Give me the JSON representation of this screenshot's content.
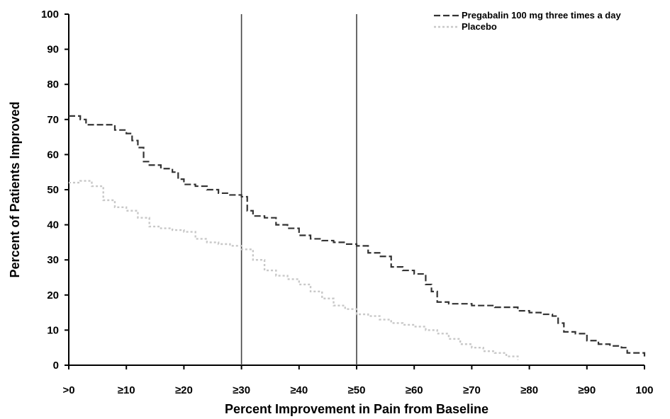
{
  "chart_data": {
    "type": "line",
    "title": "",
    "xlabel": "Percent Improvement in Pain from Baseline",
    "ylabel": "Percent of Patients Improved",
    "xlim": [
      0,
      100
    ],
    "ylim": [
      0,
      100
    ],
    "x_tick_labels": [
      ">0",
      "≥10",
      "≥20",
      "≥30",
      "≥40",
      "≥50",
      "≥60",
      "≥70",
      "≥80",
      "≥90",
      "100"
    ],
    "x_tick_values": [
      0,
      10,
      20,
      30,
      40,
      50,
      60,
      70,
      80,
      90,
      100
    ],
    "y_tick_values": [
      0,
      10,
      20,
      30,
      40,
      50,
      60,
      70,
      80,
      90,
      100
    ],
    "reference_lines_x": [
      30,
      50
    ],
    "grid": false,
    "legend_position": "top-right",
    "series": [
      {
        "name": "Pregabalin 100 mg three times a day",
        "style": "dashed",
        "color": "#333333",
        "x": [
          0,
          2,
          3,
          8,
          10,
          11,
          12,
          13,
          14,
          16,
          18,
          19,
          20,
          22,
          24,
          26,
          28,
          30,
          31,
          32,
          34,
          35,
          36,
          38,
          40,
          42,
          44,
          46,
          48,
          50,
          52,
          54,
          56,
          58,
          60,
          62,
          63,
          64,
          66,
          70,
          74,
          78,
          80,
          82,
          84,
          85,
          86,
          88,
          90,
          92,
          94,
          96,
          97,
          100
        ],
        "y": [
          71,
          70,
          68.5,
          67,
          66,
          64,
          62,
          58,
          57,
          56,
          55,
          53,
          51.5,
          51,
          50,
          49,
          48.5,
          48,
          44,
          42.5,
          42,
          42,
          40,
          39,
          37,
          36,
          35.5,
          35,
          34.5,
          34,
          32,
          31,
          28,
          27,
          26,
          23,
          21,
          18,
          17.5,
          17,
          16.5,
          15.5,
          15,
          14.5,
          14,
          12,
          9.5,
          9,
          7,
          6,
          5.5,
          5,
          3.5,
          2.5
        ]
      },
      {
        "name": "Placebo",
        "style": "dotted",
        "color": "#c8c8c8",
        "x": [
          0,
          2,
          4,
          6,
          8,
          10,
          12,
          14,
          16,
          18,
          20,
          22,
          24,
          26,
          28,
          30,
          32,
          34,
          36,
          38,
          40,
          42,
          44,
          46,
          48,
          50,
          52,
          54,
          56,
          58,
          60,
          62,
          64,
          66,
          68,
          70,
          72,
          74,
          76,
          78
        ],
        "y": [
          52,
          52.5,
          51,
          47,
          45,
          44,
          42,
          39.5,
          39,
          38.5,
          38,
          36,
          35,
          34.5,
          34,
          33,
          30,
          27,
          25.5,
          24.5,
          23,
          21,
          19,
          17,
          16,
          14.5,
          14,
          13,
          12,
          11.5,
          11,
          10,
          9,
          7.5,
          6,
          5,
          4,
          3.5,
          2.5,
          1.5
        ]
      }
    ]
  }
}
